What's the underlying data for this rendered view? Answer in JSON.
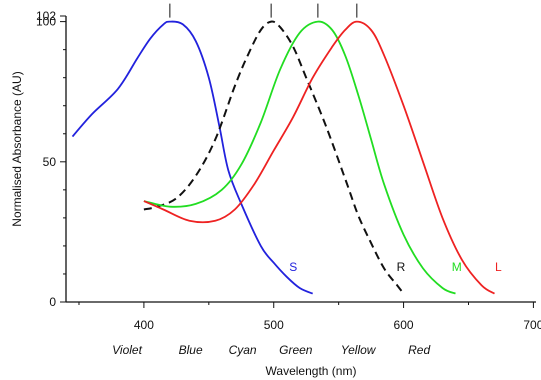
{
  "chart_data": {
    "type": "line",
    "xlabel": "Wavelength (nm)",
    "ylabel": "Normalised Absorbance (AU)",
    "xlim": [
      340,
      702
    ],
    "ylim": [
      0,
      102
    ],
    "x_ticks": [
      {
        "value": 400,
        "label": "400"
      },
      {
        "value": 500,
        "label": "500"
      },
      {
        "value": 600,
        "label": "600"
      },
      {
        "value": 700,
        "label": "700"
      }
    ],
    "y_ticks": [
      {
        "value": 0,
        "label": "0"
      },
      {
        "value": 50,
        "label": "50"
      },
      {
        "value": 100,
        "label": "100"
      },
      {
        "value": 102,
        "label": "102"
      }
    ],
    "color_names": [
      {
        "value": 387,
        "label": "Violet"
      },
      {
        "value": 436,
        "label": "Blue"
      },
      {
        "value": 476,
        "label": "Cyan"
      },
      {
        "value": 517,
        "label": "Green"
      },
      {
        "value": 565,
        "label": "Yellow"
      },
      {
        "value": 612,
        "label": "Red"
      }
    ],
    "peaks": [
      {
        "x": 420,
        "label": "420"
      },
      {
        "x": 498,
        "label": "498"
      },
      {
        "x": 534,
        "label": "534"
      },
      {
        "x": 564,
        "label": "564"
      }
    ],
    "series": [
      {
        "name": "S",
        "color": "#2222dd",
        "dash": false,
        "points": [
          [
            345,
            59
          ],
          [
            360,
            67
          ],
          [
            380,
            76
          ],
          [
            395,
            87
          ],
          [
            405,
            94
          ],
          [
            415,
            99
          ],
          [
            420,
            100
          ],
          [
            430,
            99
          ],
          [
            440,
            93
          ],
          [
            450,
            80
          ],
          [
            458,
            63
          ],
          [
            465,
            47
          ],
          [
            475,
            35
          ],
          [
            490,
            20
          ],
          [
            500,
            14
          ],
          [
            510,
            9
          ],
          [
            520,
            5
          ],
          [
            530,
            3
          ]
        ]
      },
      {
        "name": "R",
        "color": "#111111",
        "dash": true,
        "points": [
          [
            400,
            33
          ],
          [
            410,
            34
          ],
          [
            425,
            37
          ],
          [
            440,
            45
          ],
          [
            455,
            58
          ],
          [
            470,
            77
          ],
          [
            480,
            88
          ],
          [
            490,
            97
          ],
          [
            498,
            100
          ],
          [
            505,
            98
          ],
          [
            515,
            91
          ],
          [
            525,
            80
          ],
          [
            540,
            63
          ],
          [
            555,
            44
          ],
          [
            565,
            31
          ],
          [
            575,
            21
          ],
          [
            585,
            12
          ],
          [
            595,
            6
          ],
          [
            600,
            3
          ]
        ]
      },
      {
        "name": "M",
        "color": "#22dd22",
        "dash": false,
        "points": [
          [
            400,
            36
          ],
          [
            420,
            34
          ],
          [
            440,
            35
          ],
          [
            460,
            40
          ],
          [
            475,
            49
          ],
          [
            490,
            64
          ],
          [
            505,
            83
          ],
          [
            520,
            96
          ],
          [
            534,
            100
          ],
          [
            545,
            97
          ],
          [
            555,
            88
          ],
          [
            565,
            74
          ],
          [
            575,
            58
          ],
          [
            585,
            42
          ],
          [
            600,
            24
          ],
          [
            615,
            12
          ],
          [
            630,
            5
          ],
          [
            640,
            3
          ]
        ]
      },
      {
        "name": "L",
        "color": "#ee2222",
        "dash": false,
        "points": [
          [
            400,
            36
          ],
          [
            415,
            33
          ],
          [
            435,
            29
          ],
          [
            455,
            29
          ],
          [
            470,
            33
          ],
          [
            485,
            42
          ],
          [
            500,
            54
          ],
          [
            515,
            66
          ],
          [
            530,
            80
          ],
          [
            545,
            91
          ],
          [
            555,
            97
          ],
          [
            564,
            100
          ],
          [
            575,
            97
          ],
          [
            585,
            88
          ],
          [
            600,
            70
          ],
          [
            615,
            50
          ],
          [
            630,
            30
          ],
          [
            645,
            15
          ],
          [
            660,
            6
          ],
          [
            670,
            3
          ]
        ]
      }
    ],
    "series_labels": [
      {
        "name": "S",
        "x": 515,
        "y": 11
      },
      {
        "name": "R",
        "x": 598,
        "y": 11
      },
      {
        "name": "M",
        "x": 641,
        "y": 11
      },
      {
        "name": "L",
        "x": 673,
        "y": 11
      }
    ]
  }
}
